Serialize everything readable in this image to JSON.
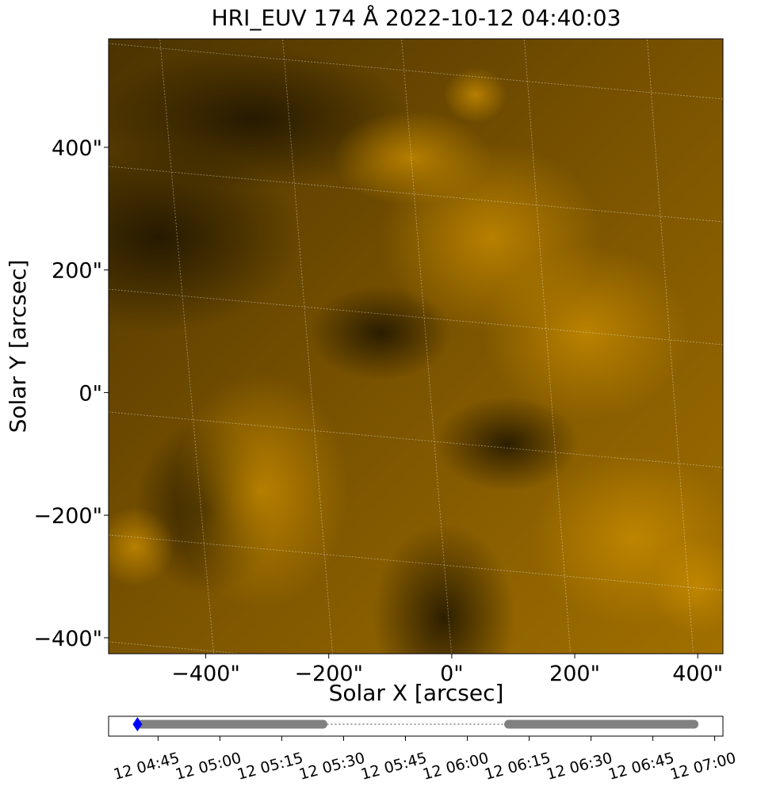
{
  "chart_data": [
    {
      "type": "image",
      "title": "HRI_EUV 174 Å 2022-10-12 04:40:03",
      "x_label": "Solar X [arcsec]",
      "y_label": "Solar Y [arcsec]",
      "xlim": [
        -558,
        441
      ],
      "ylim": [
        -426,
        577
      ],
      "xticks": [
        {
          "value": -400,
          "label": "−400\""
        },
        {
          "value": -200,
          "label": "−200\""
        },
        {
          "value": 0,
          "label": "0\""
        },
        {
          "value": 200,
          "label": "200\""
        },
        {
          "value": 400,
          "label": "400\""
        }
      ],
      "yticks": [
        {
          "value": -400,
          "label": "−400\""
        },
        {
          "value": -200,
          "label": "−200\""
        },
        {
          "value": 0,
          "label": "0\""
        },
        {
          "value": 200,
          "label": "200\""
        },
        {
          "value": 400,
          "label": "400\""
        }
      ],
      "colormap": [
        "#1c1300",
        "#7a5300",
        "#c88c00"
      ]
    },
    {
      "type": "timeline",
      "xlim": [
        "12 04:33",
        "12 07:02"
      ],
      "xticks": [
        "12 04:45",
        "12 05:00",
        "12 05:15",
        "12 05:30",
        "12 05:45",
        "12 06:00",
        "12 06:15",
        "12 06:30",
        "12 06:45",
        "12 07:00"
      ],
      "segments": [
        {
          "start": "12 04:41",
          "end": "12 05:25"
        },
        {
          "start": "12 06:10",
          "end": "12 06:55"
        }
      ],
      "segment_color": "#808080",
      "gap_color": "#808080",
      "marker": {
        "x": "12 04:40",
        "color": "#0000ff"
      }
    }
  ]
}
